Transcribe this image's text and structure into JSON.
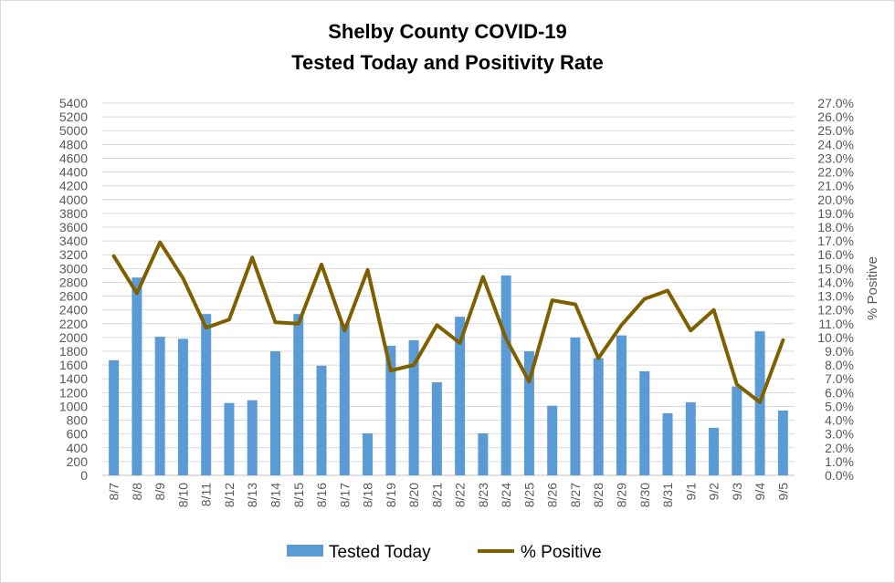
{
  "chart_data": {
    "type": "bar",
    "title_line1": "Shelby County COVID-19",
    "title_line2": "Tested Today and Positivity Rate",
    "categories": [
      "8/7",
      "8/8",
      "8/9",
      "8/10",
      "8/11",
      "8/12",
      "8/13",
      "8/14",
      "8/15",
      "8/16",
      "8/17",
      "8/18",
      "8/19",
      "8/20",
      "8/21",
      "8/22",
      "8/23",
      "8/24",
      "8/25",
      "8/26",
      "8/27",
      "8/28",
      "8/29",
      "8/30",
      "8/31",
      "9/1",
      "9/2",
      "9/3",
      "9/4",
      "9/5"
    ],
    "series": [
      {
        "name": "Tested Today",
        "type": "bar",
        "axis": "left",
        "color": "#5b9bd5",
        "values": [
          1670,
          2870,
          2010,
          1980,
          2340,
          1050,
          1090,
          1800,
          2340,
          1590,
          2200,
          610,
          1880,
          1960,
          1350,
          2300,
          610,
          2900,
          1800,
          1010,
          2000,
          1700,
          2030,
          1510,
          900,
          1060,
          690,
          1290,
          2090,
          940
        ]
      },
      {
        "name": "% Positive",
        "type": "line",
        "axis": "right",
        "color": "#7f6000",
        "values": [
          15.9,
          13.2,
          16.9,
          14.3,
          10.7,
          11.3,
          15.8,
          11.1,
          11.0,
          15.3,
          10.5,
          14.9,
          7.6,
          8.0,
          10.9,
          9.6,
          14.4,
          9.9,
          6.8,
          12.7,
          12.4,
          8.5,
          10.9,
          12.8,
          13.4,
          10.5,
          12.0,
          6.6,
          5.3,
          9.8
        ]
      }
    ],
    "y_left": {
      "min": 0,
      "max": 5400,
      "step": 200,
      "ticks": [
        "0",
        "200",
        "400",
        "600",
        "800",
        "1000",
        "1200",
        "1400",
        "1600",
        "1800",
        "2000",
        "2200",
        "2400",
        "2600",
        "2800",
        "3000",
        "3200",
        "3400",
        "3600",
        "3800",
        "4000",
        "4200",
        "4400",
        "4600",
        "4800",
        "5000",
        "5200",
        "5400"
      ]
    },
    "y_right": {
      "min": 0,
      "max": 27,
      "step": 1,
      "label": "% Positive",
      "ticks": [
        "0.0%",
        "1.0%",
        "2.0%",
        "3.0%",
        "4.0%",
        "5.0%",
        "6.0%",
        "7.0%",
        "8.0%",
        "9.0%",
        "10.0%",
        "11.0%",
        "12.0%",
        "13.0%",
        "14.0%",
        "15.0%",
        "16.0%",
        "17.0%",
        "18.0%",
        "19.0%",
        "20.0%",
        "21.0%",
        "22.0%",
        "23.0%",
        "24.0%",
        "25.0%",
        "26.0%",
        "27.0%"
      ]
    },
    "grid": true,
    "legend_position": "bottom",
    "legend": [
      "Tested Today",
      "% Positive"
    ],
    "colors": {
      "bar": "#5b9bd5",
      "line": "#7f6000",
      "grid": "#d9d9d9",
      "tick": "#595959"
    }
  }
}
